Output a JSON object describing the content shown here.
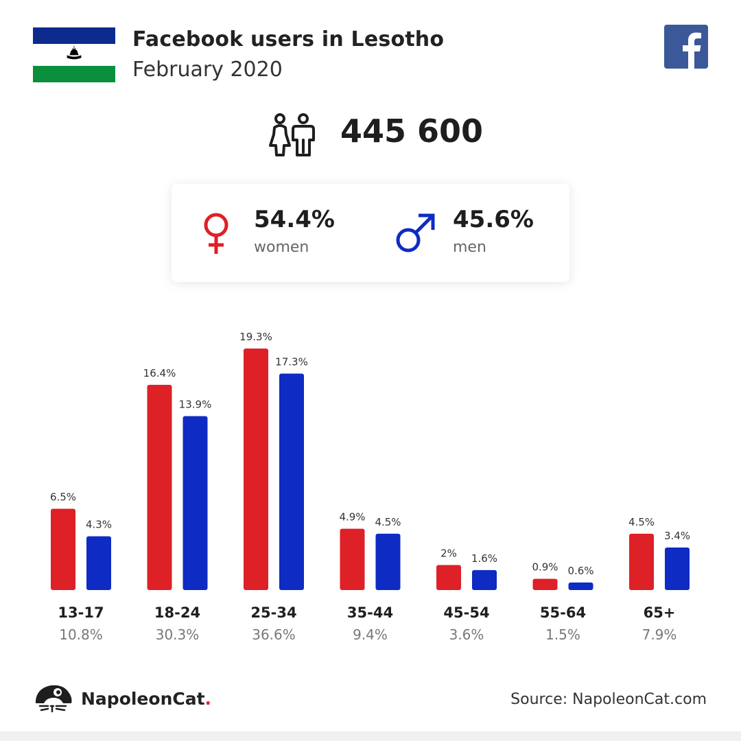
{
  "header": {
    "title": "Facebook users in Lesotho",
    "subtitle": "February 2020"
  },
  "colors": {
    "women": "#de2027",
    "men": "#0e2bc3",
    "facebook": "#3b5998",
    "flag_blue": "#0d2b8f",
    "flag_green": "#0a8f3c"
  },
  "total": {
    "value": "445 600"
  },
  "gender": {
    "women": {
      "pct": "54.4%",
      "label": "women"
    },
    "men": {
      "pct": "45.6%",
      "label": "men"
    }
  },
  "chart_data": {
    "type": "bar",
    "categories": [
      "13-17",
      "18-24",
      "25-34",
      "35-44",
      "45-54",
      "55-64",
      "65+"
    ],
    "totals": [
      "10.8%",
      "30.3%",
      "36.6%",
      "9.4%",
      "3.6%",
      "1.5%",
      "7.9%"
    ],
    "series": [
      {
        "values": [
          6.5,
          16.4,
          19.3,
          4.9,
          2,
          0.9,
          4.5
        ],
        "labels": [
          "6.5%",
          "16.4%",
          "19.3%",
          "4.9%",
          "2%",
          "0.9%",
          "4.5%"
        ],
        "color": "#de2027"
      },
      {
        "values": [
          4.3,
          13.9,
          17.3,
          4.5,
          1.6,
          0.6,
          3.4
        ],
        "labels": [
          "4.3%",
          "13.9%",
          "17.3%",
          "4.5%",
          "1.6%",
          "0.6%",
          "3.4%"
        ],
        "color": "#0e2bc3"
      }
    ],
    "ylim": [
      0,
      19.3
    ],
    "grid": false,
    "legend": "none"
  },
  "footer": {
    "brand": "NapoleonCat",
    "brand_dot": ".",
    "source": "Source: NapoleonCat.com"
  }
}
